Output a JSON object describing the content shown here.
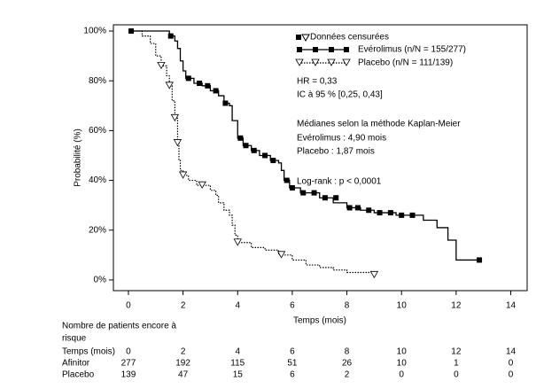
{
  "chart_data": {
    "type": "step",
    "x_label": "Temps (mois)",
    "y_label": "Probabilité (%)",
    "xlim": [
      -0.55,
      14.6
    ],
    "xticks": [
      0,
      2,
      4,
      6,
      8,
      10,
      12,
      14
    ],
    "ylim": [
      -4.3,
      102.5
    ],
    "yticks": [
      {
        "value": 0,
        "label": "0%"
      },
      {
        "value": 20,
        "label": "20%"
      },
      {
        "value": 40,
        "label": "40%"
      },
      {
        "value": 60,
        "label": "60%"
      },
      {
        "value": 80,
        "label": "80%"
      },
      {
        "value": 100,
        "label": "100%"
      }
    ],
    "censored_legend": "Données censurées",
    "series": [
      {
        "name": "Evérolimus (n/N = 155/277)",
        "color": "#000000",
        "style": "solid",
        "marker": "square",
        "x": [
          0,
          1.5,
          1.7,
          1.8,
          1.9,
          2.0,
          2.1,
          2.4,
          2.7,
          3.0,
          3.3,
          3.5,
          3.7,
          3.8,
          4.0,
          4.2,
          4.5,
          4.8,
          5.2,
          5.5,
          5.6,
          5.7,
          5.9,
          6.3,
          7.0,
          7.5,
          8.0,
          8.5,
          9.0,
          9.8,
          10.8,
          11.3,
          11.7,
          12.0,
          12.85
        ],
        "values": [
          100,
          98,
          96,
          93,
          88,
          84,
          81,
          79,
          78,
          76,
          74,
          71,
          70,
          64,
          57,
          54,
          52,
          50,
          48,
          47,
          44,
          40,
          37,
          35,
          33,
          31,
          29,
          28,
          27,
          26,
          24,
          21,
          16,
          8,
          8
        ],
        "censored_x": [
          0.1,
          1.55,
          2.2,
          2.6,
          2.9,
          3.2,
          3.55,
          4.1,
          4.3,
          4.6,
          5.0,
          5.3,
          5.8,
          6.0,
          6.4,
          6.8,
          7.2,
          7.6,
          8.1,
          8.4,
          8.8,
          9.2,
          9.6,
          10.0,
          10.4,
          12.85
        ],
        "censored_values": [
          100,
          98,
          81,
          79,
          78,
          76,
          71,
          57,
          54,
          52,
          50,
          48,
          40,
          37,
          35,
          35,
          33,
          33,
          29,
          29,
          28,
          27,
          27,
          26,
          26,
          8
        ]
      },
      {
        "name": "Placebo (n/N = 111/139)",
        "color": "#000000",
        "style": "dotted",
        "marker": "triangle",
        "x": [
          0,
          0.5,
          0.8,
          1.0,
          1.2,
          1.4,
          1.5,
          1.6,
          1.7,
          1.8,
          1.85,
          1.9,
          2.0,
          2.2,
          2.5,
          3.0,
          3.2,
          3.3,
          3.5,
          3.7,
          3.8,
          3.9,
          4.0,
          4.5,
          5.0,
          5.5,
          6.0,
          6.5,
          7.0,
          7.5,
          8.0,
          9.0
        ],
        "values": [
          100,
          98,
          95,
          90,
          86,
          82,
          78,
          72,
          65,
          55,
          48,
          44,
          42,
          40,
          38,
          36,
          34,
          31,
          28,
          26,
          22,
          18,
          15,
          13,
          12,
          10,
          8,
          6,
          5,
          4,
          3,
          2
        ],
        "censored_x": [
          1.2,
          1.5,
          1.7,
          1.8,
          2.0,
          2.7,
          4.0,
          5.6,
          9.0
        ],
        "censored_values": [
          86,
          78,
          65,
          55,
          42,
          38,
          15,
          10,
          2
        ]
      }
    ],
    "annotations": [
      "HR = 0,33",
      "IC à 95 % [0,25, 0,43]",
      "Médianes selon la méthode Kaplan-Meier",
      "Evérolimus : 4,90 mois",
      "Placebo : 1,87 mois",
      "Log-rank : p < 0,0001"
    ],
    "risk_table": {
      "title_lines": [
        "Nombre de patients encore à",
        "risque"
      ],
      "rows": [
        {
          "label": "Temps (mois)",
          "values": [
            0,
            2,
            4,
            6,
            8,
            10,
            12,
            14
          ]
        },
        {
          "label": "Afinitor",
          "values": [
            277,
            192,
            115,
            51,
            26,
            10,
            1,
            0
          ]
        },
        {
          "label": "Placebo",
          "values": [
            139,
            47,
            15,
            6,
            2,
            0,
            0,
            0
          ]
        }
      ]
    }
  }
}
